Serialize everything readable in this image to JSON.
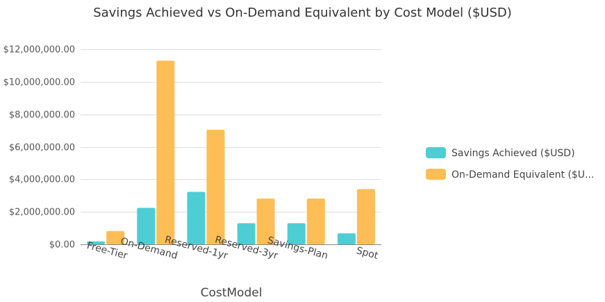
{
  "chart_data": {
    "type": "bar",
    "title": "Savings Achieved vs On-Demand Equivalent by Cost Model ($USD)",
    "xlabel": "CostModel",
    "ylabel": "",
    "categories": [
      "Free-Tier",
      "On-Demand",
      "Reserved-1yr",
      "Reserved-3yr",
      "Savings-Plan",
      "Spot"
    ],
    "series": [
      {
        "name": "Savings Achieved ($USD)",
        "color": "#4ecdd4",
        "values": [
          180000,
          2250000,
          3230000,
          1300000,
          1300000,
          680000
        ]
      },
      {
        "name": "On-Demand Equivalent ($USD)",
        "legend_text": "On-Demand Equivalent ($U...",
        "color": "#ffbe55",
        "values": [
          820000,
          11300000,
          7050000,
          2820000,
          2820000,
          3400000
        ]
      }
    ],
    "ylim": [
      0,
      12000000
    ],
    "yticks": [
      0,
      2000000,
      4000000,
      6000000,
      8000000,
      10000000,
      12000000
    ],
    "ytick_labels": [
      "$0.00",
      "$2,000,000.00",
      "$4,000,000.00",
      "$6,000,000.00",
      "$8,000,000.00",
      "$10,000,000.00",
      "$12,000,000.00"
    ],
    "grid": true,
    "legend_position": "right"
  }
}
